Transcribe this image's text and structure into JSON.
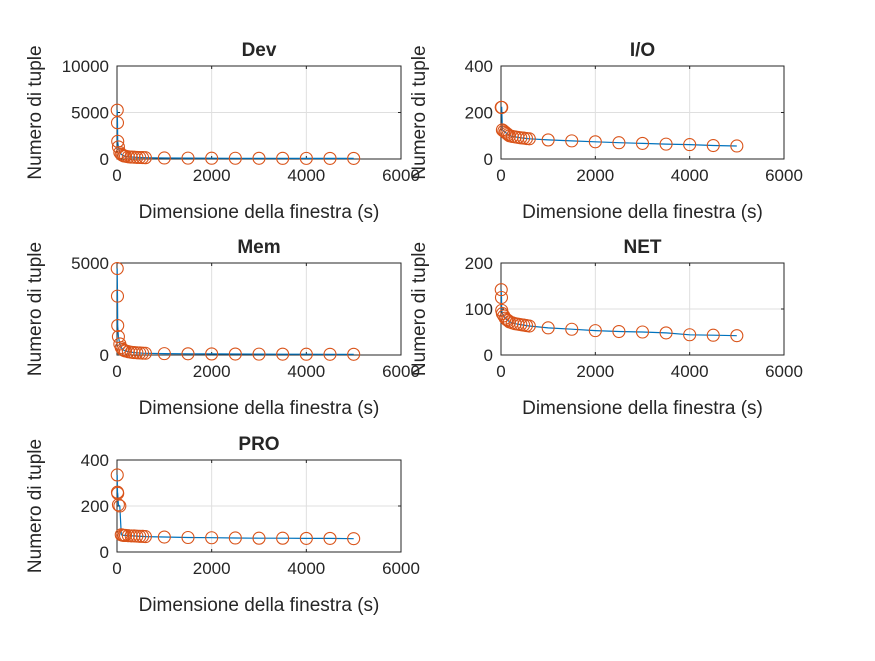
{
  "chart_data": [
    {
      "type": "line",
      "title": "Dev",
      "xlabel": "Dimensione della finestra (s)",
      "ylabel": "Numero di tuple",
      "xlim": [
        0,
        6000
      ],
      "ylim": [
        0,
        10000
      ],
      "xticks": [
        "0",
        "2000",
        "4000",
        "6000"
      ],
      "yticks": [
        "0",
        "5000",
        "10000"
      ],
      "grid": true,
      "x": [
        5,
        10,
        15,
        30,
        60,
        90,
        120,
        150,
        180,
        240,
        300,
        360,
        420,
        480,
        540,
        600,
        1000,
        1500,
        2000,
        2500,
        3000,
        3500,
        4000,
        4500,
        5000
      ],
      "y": [
        5250,
        3900,
        1900,
        1300,
        700,
        500,
        400,
        330,
        290,
        240,
        210,
        190,
        170,
        160,
        150,
        140,
        110,
        95,
        85,
        80,
        75,
        70,
        68,
        65,
        62
      ]
    },
    {
      "type": "line",
      "title": "I/O",
      "xlabel": "Dimensione della finestra (s)",
      "ylabel": "Numero di tuple",
      "xlim": [
        0,
        6000
      ],
      "ylim": [
        0,
        400
      ],
      "xticks": [
        "0",
        "2000",
        "4000",
        "6000"
      ],
      "yticks": [
        "0",
        "200",
        "400"
      ],
      "grid": true,
      "x": [
        5,
        10,
        15,
        30,
        60,
        90,
        120,
        150,
        180,
        240,
        300,
        360,
        420,
        480,
        540,
        600,
        1000,
        1500,
        2000,
        2500,
        3000,
        3500,
        4000,
        4500,
        5000
      ],
      "y": [
        222,
        222,
        222,
        125,
        120,
        115,
        110,
        105,
        100,
        97,
        95,
        93,
        91,
        90,
        88,
        87,
        82,
        78,
        74,
        70,
        67,
        64,
        62,
        58,
        56
      ]
    },
    {
      "type": "line",
      "title": "Mem",
      "xlabel": "Dimensione della finestra (s)",
      "ylabel": "Numero di tuple",
      "xlim": [
        0,
        6000
      ],
      "ylim": [
        0,
        5000
      ],
      "xticks": [
        "0",
        "2000",
        "4000",
        "6000"
      ],
      "yticks": [
        "0",
        "5000"
      ],
      "grid": true,
      "x": [
        5,
        10,
        15,
        30,
        60,
        90,
        120,
        150,
        180,
        240,
        300,
        360,
        420,
        480,
        540,
        600,
        1000,
        1500,
        2000,
        2500,
        3000,
        3500,
        4000,
        4500,
        5000
      ],
      "y": [
        4700,
        3200,
        1600,
        1000,
        600,
        400,
        300,
        250,
        220,
        180,
        150,
        130,
        120,
        110,
        100,
        95,
        75,
        65,
        58,
        52,
        48,
        45,
        42,
        40,
        38
      ]
    },
    {
      "type": "line",
      "title": "NET",
      "xlabel": "Dimensione della finestra (s)",
      "ylabel": "Numero di tuple",
      "xlim": [
        0,
        6000
      ],
      "ylim": [
        0,
        200
      ],
      "xticks": [
        "0",
        "2000",
        "4000",
        "6000"
      ],
      "yticks": [
        "0",
        "100",
        "200"
      ],
      "grid": true,
      "x": [
        5,
        10,
        15,
        30,
        60,
        90,
        120,
        150,
        180,
        240,
        300,
        360,
        420,
        480,
        540,
        600,
        1000,
        1500,
        2000,
        2500,
        3000,
        3500,
        4000,
        4500,
        5000
      ],
      "y": [
        142,
        125,
        97,
        90,
        85,
        80,
        77,
        75,
        72,
        70,
        68,
        67,
        66,
        65,
        64,
        63,
        59,
        56,
        53,
        51,
        50,
        48,
        44,
        43,
        42
      ]
    },
    {
      "type": "line",
      "title": "PRO",
      "xlabel": "Dimensione della finestra (s)",
      "ylabel": "Numero di tuple",
      "xlim": [
        0,
        6000
      ],
      "ylim": [
        0,
        400
      ],
      "xticks": [
        "0",
        "2000",
        "4000",
        "6000"
      ],
      "yticks": [
        "0",
        "200",
        "400"
      ],
      "grid": true,
      "x": [
        5,
        10,
        15,
        30,
        60,
        90,
        120,
        150,
        180,
        240,
        300,
        360,
        420,
        480,
        540,
        600,
        1000,
        1500,
        2000,
        2500,
        3000,
        3500,
        4000,
        4500,
        5000
      ],
      "y": [
        335,
        260,
        255,
        205,
        200,
        75,
        73,
        72,
        72,
        71,
        70,
        70,
        69,
        68,
        68,
        67,
        65,
        63,
        62,
        61,
        60,
        60,
        59,
        59,
        58
      ]
    }
  ],
  "colors": {
    "line": "#0072BD",
    "marker": "#D95319",
    "grid": "#DFDFDF",
    "axis": "#262626"
  }
}
